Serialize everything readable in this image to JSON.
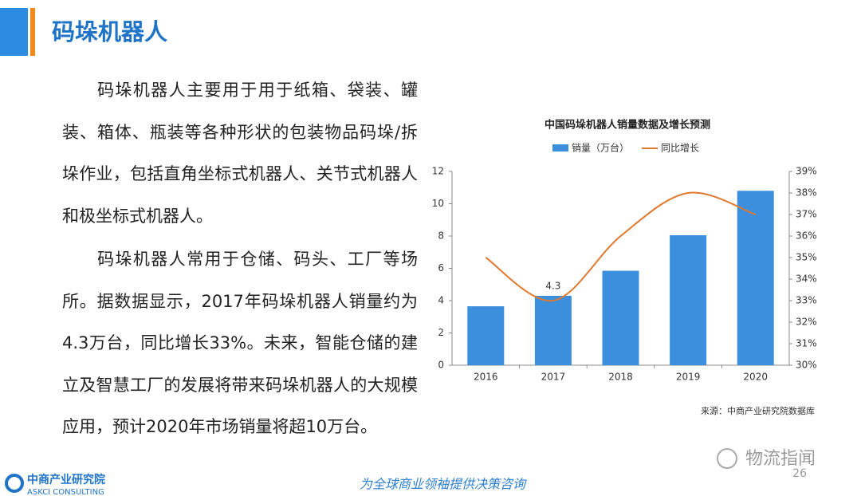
{
  "header": {
    "title": "码垛机器人"
  },
  "paragraphs": [
    "码垛机器人主要用于用于纸箱、袋装、罐装、箱体、瓶装等各种形状的包装物品码垛/拆垛作业，包括直角坐标式机器人、关节式机器人和极坐标式机器人。",
    "码垛机器人常用于仓储、码头、工厂等场所。据数据显示，2017年码垛机器人销量约为4.3万台，同比增长33%。未来，智能仓储的建立及智慧工厂的发展将带来码垛机器人的大规模应用，预计2020年市场销量将超10万台。"
  ],
  "chart_data": {
    "type": "bar-line",
    "title": "中国码垛机器人销量数据及增长预测",
    "categories": [
      "2016",
      "2017",
      "2018",
      "2019",
      "2020"
    ],
    "series": [
      {
        "name": "销量（万台）",
        "color": "#3c8fdc",
        "type": "bar",
        "values": [
          3.65,
          4.3,
          5.85,
          8.05,
          10.8
        ],
        "value_labels": [
          null,
          "4.3",
          null,
          null,
          null
        ]
      },
      {
        "name": "同比增长",
        "color": "#e0782e",
        "type": "line",
        "axis": "y2",
        "values": [
          35,
          33,
          36,
          38,
          37
        ]
      }
    ],
    "ylim": [
      0,
      12
    ],
    "yticks": [
      0,
      2,
      4,
      6,
      8,
      10,
      12
    ],
    "y2lim": [
      30,
      39
    ],
    "y2ticks": [
      {
        "value": 30,
        "label": "30%"
      },
      {
        "value": 31,
        "label": "31%"
      },
      {
        "value": 32,
        "label": "32%"
      },
      {
        "value": 33,
        "label": "33%"
      },
      {
        "value": 34,
        "label": "34%"
      },
      {
        "value": 35,
        "label": "35%"
      },
      {
        "value": 36,
        "label": "36%"
      },
      {
        "value": 37,
        "label": "37%"
      },
      {
        "value": 38,
        "label": "38%"
      },
      {
        "value": 39,
        "label": "39%"
      }
    ],
    "grid": false,
    "legend": "top",
    "source": "来源：中商产业研究院数据库"
  },
  "footer": {
    "logo_name": "中商产业研究院",
    "logo_sub": "ASKCI CONSULTING",
    "slogan": "为全球商业领袖提供决策咨询",
    "page_number": "26",
    "watermark": "物流指闻"
  }
}
